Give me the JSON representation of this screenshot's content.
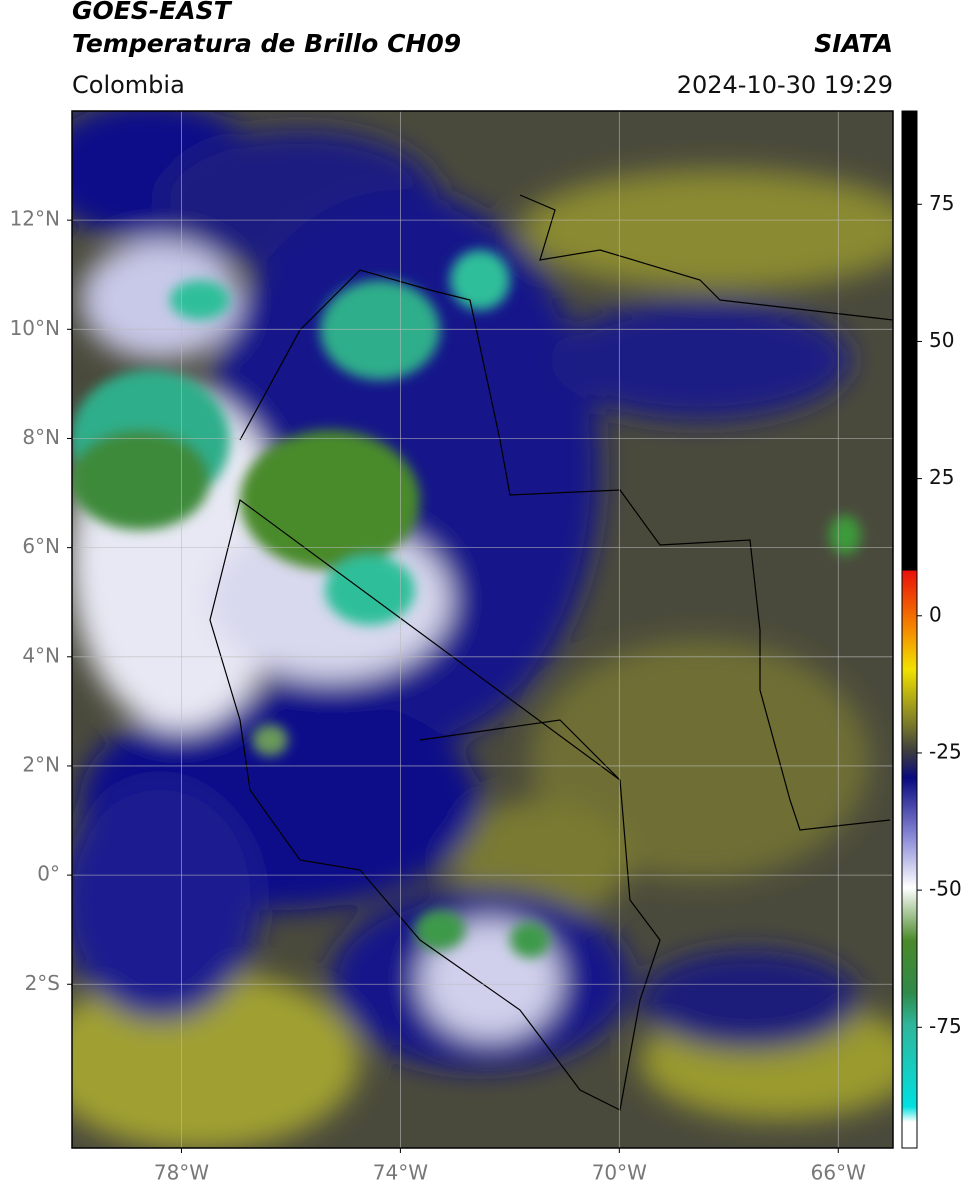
{
  "header": {
    "title_line1": "GOES-EAST",
    "title_line2": "Temperatura de Brillo CH09",
    "source": "SIATA",
    "region": "Colombia",
    "datetime": "2024-10-30 19:29"
  },
  "map": {
    "xlim": [
      -80,
      -65
    ],
    "ylim": [
      -5,
      14
    ],
    "grid": true,
    "xticks": [
      {
        "value": -78,
        "label": "78°W"
      },
      {
        "value": -74,
        "label": "74°W"
      },
      {
        "value": -70,
        "label": "70°W"
      },
      {
        "value": -66,
        "label": "66°W"
      }
    ],
    "yticks": [
      {
        "value": 12,
        "label": "12°N"
      },
      {
        "value": 10,
        "label": "10°N"
      },
      {
        "value": 8,
        "label": "8°N"
      },
      {
        "value": 6,
        "label": "6°N"
      },
      {
        "value": 4,
        "label": "4°N"
      },
      {
        "value": 2,
        "label": "2°N"
      },
      {
        "value": 0,
        "label": "0°"
      },
      {
        "value": -2,
        "label": "2°S"
      }
    ]
  },
  "colorbar": {
    "lim": [
      -97,
      92
    ],
    "ticks": [
      75,
      50,
      25,
      0,
      -25,
      -50,
      -75
    ]
  }
}
